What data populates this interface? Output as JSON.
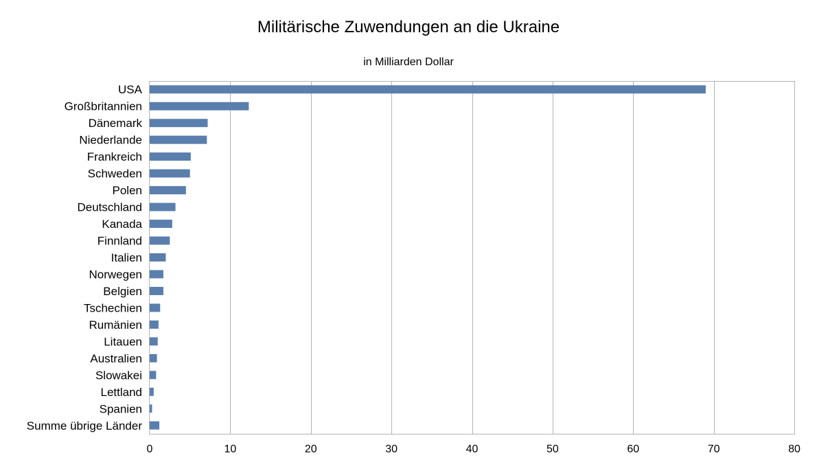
{
  "chart_data": {
    "type": "bar",
    "orientation": "horizontal",
    "title": "Militärische Zuwendungen an die Ukraine",
    "subtitle": "in Milliarden Dollar",
    "xlabel": "",
    "ylabel": "",
    "xlim": [
      0,
      80
    ],
    "xticks": [
      0,
      10,
      20,
      30,
      40,
      50,
      60,
      70,
      80
    ],
    "grid": true,
    "legend": "none",
    "bar_color": "#5b7fad",
    "grid_color": "#b3b3b3",
    "categories": [
      "USA",
      "Großbritannien",
      "Dänemark",
      "Niederlande",
      "Frankreich",
      "Schweden",
      "Polen",
      "Deutschland",
      "Kanada",
      "Finnland",
      "Italien",
      "Norwegen",
      "Belgien",
      "Tschechien",
      "Rumänien",
      "Litauen",
      "Australien",
      "Slowakei",
      "Lettland",
      "Spanien",
      "Summe übrige Länder"
    ],
    "values": [
      69.0,
      12.3,
      7.2,
      7.1,
      5.1,
      5.0,
      4.5,
      3.2,
      2.8,
      2.5,
      2.0,
      1.7,
      1.7,
      1.3,
      1.1,
      1.0,
      0.9,
      0.8,
      0.5,
      0.3,
      1.2
    ]
  }
}
